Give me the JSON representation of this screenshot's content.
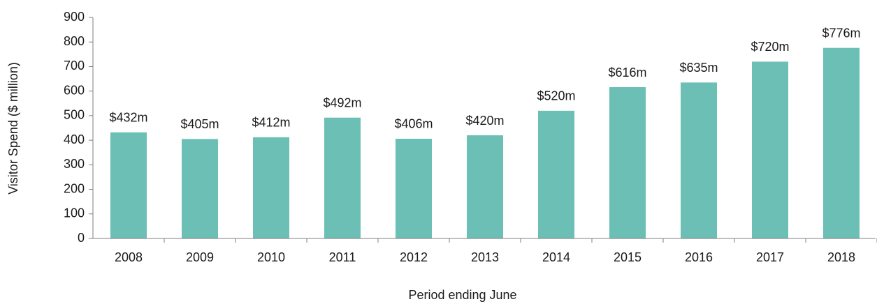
{
  "chart_data": {
    "type": "bar",
    "xlabel": "Period ending June",
    "ylabel": "Visitor Spend ($ million)",
    "categories": [
      "2008",
      "2009",
      "2010",
      "2011",
      "2012",
      "2013",
      "2014",
      "2015",
      "2016",
      "2017",
      "2018"
    ],
    "values": [
      432,
      405,
      412,
      492,
      406,
      420,
      520,
      616,
      635,
      720,
      776
    ],
    "value_labels": [
      "$432m",
      "$405m",
      "$412m",
      "$492m",
      "$406m",
      "$420m",
      "$520m",
      "$616m",
      "$635m",
      "$720m",
      "$776m"
    ],
    "color": "#6bbfb4",
    "ylim": [
      0,
      900
    ],
    "yticks": [
      0,
      100,
      200,
      300,
      400,
      500,
      600,
      700,
      800,
      900
    ],
    "grid": false
  }
}
